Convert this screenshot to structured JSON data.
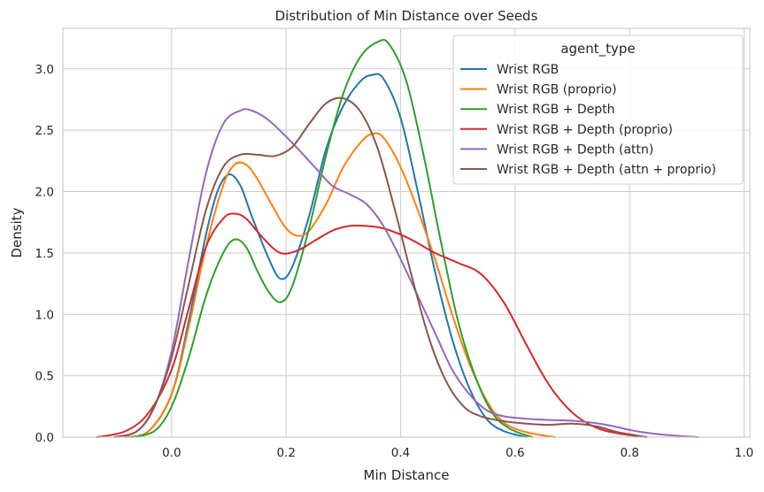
{
  "chart_data": {
    "type": "line",
    "title": "Distribution of Min Distance over Seeds",
    "xlabel": "Min Distance",
    "ylabel": "Density",
    "xlim": [
      -0.19,
      1.01
    ],
    "ylim": [
      0,
      3.33
    ],
    "xticks": [
      0.0,
      0.2,
      0.4,
      0.6,
      0.8,
      1.0
    ],
    "xtick_labels": [
      "0.0",
      "0.2",
      "0.4",
      "0.6",
      "0.8",
      "1.0"
    ],
    "yticks": [
      0.0,
      0.5,
      1.0,
      1.5,
      2.0,
      2.5,
      3.0
    ],
    "ytick_labels": [
      "0.0",
      "0.5",
      "1.0",
      "1.5",
      "2.0",
      "2.5",
      "3.0"
    ],
    "grid": true,
    "legend": {
      "title": "agent_type",
      "position": "top-right"
    },
    "series": [
      {
        "name": "Wrist RGB",
        "color": "#1f77b4",
        "points": [
          [
            -0.08,
            0.0
          ],
          [
            -0.04,
            0.05
          ],
          [
            0.0,
            0.35
          ],
          [
            0.03,
            0.95
          ],
          [
            0.06,
            1.65
          ],
          [
            0.08,
            2.0
          ],
          [
            0.1,
            2.14
          ],
          [
            0.12,
            2.05
          ],
          [
            0.14,
            1.8
          ],
          [
            0.17,
            1.45
          ],
          [
            0.19,
            1.29
          ],
          [
            0.21,
            1.38
          ],
          [
            0.24,
            1.8
          ],
          [
            0.27,
            2.35
          ],
          [
            0.3,
            2.7
          ],
          [
            0.33,
            2.9
          ],
          [
            0.35,
            2.95
          ],
          [
            0.37,
            2.92
          ],
          [
            0.4,
            2.6
          ],
          [
            0.43,
            2.0
          ],
          [
            0.46,
            1.35
          ],
          [
            0.49,
            0.8
          ],
          [
            0.52,
            0.4
          ],
          [
            0.55,
            0.15
          ],
          [
            0.58,
            0.05
          ],
          [
            0.62,
            0.0
          ]
        ]
      },
      {
        "name": "Wrist RGB (proprio)",
        "color": "#ff7f0e",
        "points": [
          [
            -0.08,
            0.0
          ],
          [
            -0.04,
            0.05
          ],
          [
            0.0,
            0.35
          ],
          [
            0.03,
            0.9
          ],
          [
            0.06,
            1.55
          ],
          [
            0.09,
            2.05
          ],
          [
            0.11,
            2.22
          ],
          [
            0.13,
            2.22
          ],
          [
            0.15,
            2.1
          ],
          [
            0.18,
            1.85
          ],
          [
            0.2,
            1.7
          ],
          [
            0.22,
            1.64
          ],
          [
            0.24,
            1.68
          ],
          [
            0.27,
            1.9
          ],
          [
            0.3,
            2.2
          ],
          [
            0.33,
            2.4
          ],
          [
            0.35,
            2.47
          ],
          [
            0.37,
            2.44
          ],
          [
            0.4,
            2.2
          ],
          [
            0.43,
            1.85
          ],
          [
            0.46,
            1.45
          ],
          [
            0.49,
            1.0
          ],
          [
            0.52,
            0.6
          ],
          [
            0.55,
            0.3
          ],
          [
            0.58,
            0.12
          ],
          [
            0.62,
            0.04
          ],
          [
            0.67,
            0.0
          ]
        ]
      },
      {
        "name": "Wrist RGB + Depth",
        "color": "#2ca02c",
        "points": [
          [
            -0.07,
            0.0
          ],
          [
            -0.03,
            0.05
          ],
          [
            0.0,
            0.25
          ],
          [
            0.03,
            0.65
          ],
          [
            0.06,
            1.15
          ],
          [
            0.09,
            1.5
          ],
          [
            0.11,
            1.61
          ],
          [
            0.13,
            1.55
          ],
          [
            0.15,
            1.35
          ],
          [
            0.17,
            1.18
          ],
          [
            0.19,
            1.1
          ],
          [
            0.21,
            1.22
          ],
          [
            0.24,
            1.7
          ],
          [
            0.27,
            2.3
          ],
          [
            0.3,
            2.8
          ],
          [
            0.33,
            3.1
          ],
          [
            0.36,
            3.22
          ],
          [
            0.38,
            3.2
          ],
          [
            0.41,
            2.9
          ],
          [
            0.44,
            2.3
          ],
          [
            0.47,
            1.6
          ],
          [
            0.5,
            0.95
          ],
          [
            0.53,
            0.5
          ],
          [
            0.56,
            0.2
          ],
          [
            0.59,
            0.07
          ],
          [
            0.63,
            0.0
          ]
        ]
      },
      {
        "name": "Wrist RGB + Depth (proprio)",
        "color": "#d62728",
        "points": [
          [
            -0.13,
            0.0
          ],
          [
            -0.08,
            0.05
          ],
          [
            -0.04,
            0.2
          ],
          [
            0.0,
            0.55
          ],
          [
            0.03,
            1.05
          ],
          [
            0.06,
            1.55
          ],
          [
            0.09,
            1.78
          ],
          [
            0.11,
            1.82
          ],
          [
            0.13,
            1.78
          ],
          [
            0.16,
            1.62
          ],
          [
            0.19,
            1.5
          ],
          [
            0.22,
            1.52
          ],
          [
            0.25,
            1.6
          ],
          [
            0.28,
            1.68
          ],
          [
            0.31,
            1.72
          ],
          [
            0.34,
            1.72
          ],
          [
            0.37,
            1.7
          ],
          [
            0.4,
            1.65
          ],
          [
            0.43,
            1.58
          ],
          [
            0.46,
            1.5
          ],
          [
            0.5,
            1.42
          ],
          [
            0.54,
            1.33
          ],
          [
            0.58,
            1.1
          ],
          [
            0.62,
            0.75
          ],
          [
            0.66,
            0.42
          ],
          [
            0.7,
            0.2
          ],
          [
            0.74,
            0.08
          ],
          [
            0.78,
            0.03
          ],
          [
            0.83,
            0.0
          ]
        ]
      },
      {
        "name": "Wrist RGB + Depth (attn)",
        "color": "#9467bd",
        "points": [
          [
            -0.1,
            0.0
          ],
          [
            -0.06,
            0.05
          ],
          [
            -0.03,
            0.25
          ],
          [
            0.0,
            0.7
          ],
          [
            0.03,
            1.45
          ],
          [
            0.06,
            2.15
          ],
          [
            0.09,
            2.55
          ],
          [
            0.12,
            2.66
          ],
          [
            0.14,
            2.66
          ],
          [
            0.17,
            2.58
          ],
          [
            0.21,
            2.4
          ],
          [
            0.25,
            2.2
          ],
          [
            0.28,
            2.05
          ],
          [
            0.31,
            1.98
          ],
          [
            0.34,
            1.9
          ],
          [
            0.37,
            1.72
          ],
          [
            0.4,
            1.45
          ],
          [
            0.43,
            1.15
          ],
          [
            0.46,
            0.85
          ],
          [
            0.49,
            0.55
          ],
          [
            0.52,
            0.35
          ],
          [
            0.55,
            0.22
          ],
          [
            0.58,
            0.17
          ],
          [
            0.62,
            0.15
          ],
          [
            0.66,
            0.14
          ],
          [
            0.71,
            0.13
          ],
          [
            0.76,
            0.1
          ],
          [
            0.81,
            0.05
          ],
          [
            0.86,
            0.02
          ],
          [
            0.92,
            0.0
          ]
        ]
      },
      {
        "name": "Wrist RGB + Depth (attn + proprio)",
        "color": "#8c564b",
        "points": [
          [
            -0.1,
            0.0
          ],
          [
            -0.06,
            0.05
          ],
          [
            -0.03,
            0.25
          ],
          [
            0.0,
            0.65
          ],
          [
            0.03,
            1.25
          ],
          [
            0.06,
            1.85
          ],
          [
            0.09,
            2.2
          ],
          [
            0.12,
            2.3
          ],
          [
            0.15,
            2.3
          ],
          [
            0.18,
            2.29
          ],
          [
            0.21,
            2.36
          ],
          [
            0.24,
            2.55
          ],
          [
            0.27,
            2.72
          ],
          [
            0.3,
            2.76
          ],
          [
            0.33,
            2.65
          ],
          [
            0.36,
            2.35
          ],
          [
            0.39,
            1.85
          ],
          [
            0.42,
            1.3
          ],
          [
            0.45,
            0.8
          ],
          [
            0.48,
            0.45
          ],
          [
            0.51,
            0.25
          ],
          [
            0.54,
            0.17
          ],
          [
            0.58,
            0.13
          ],
          [
            0.62,
            0.11
          ],
          [
            0.66,
            0.1
          ],
          [
            0.7,
            0.11
          ],
          [
            0.74,
            0.09
          ],
          [
            0.78,
            0.04
          ],
          [
            0.83,
            0.0
          ]
        ]
      }
    ]
  }
}
